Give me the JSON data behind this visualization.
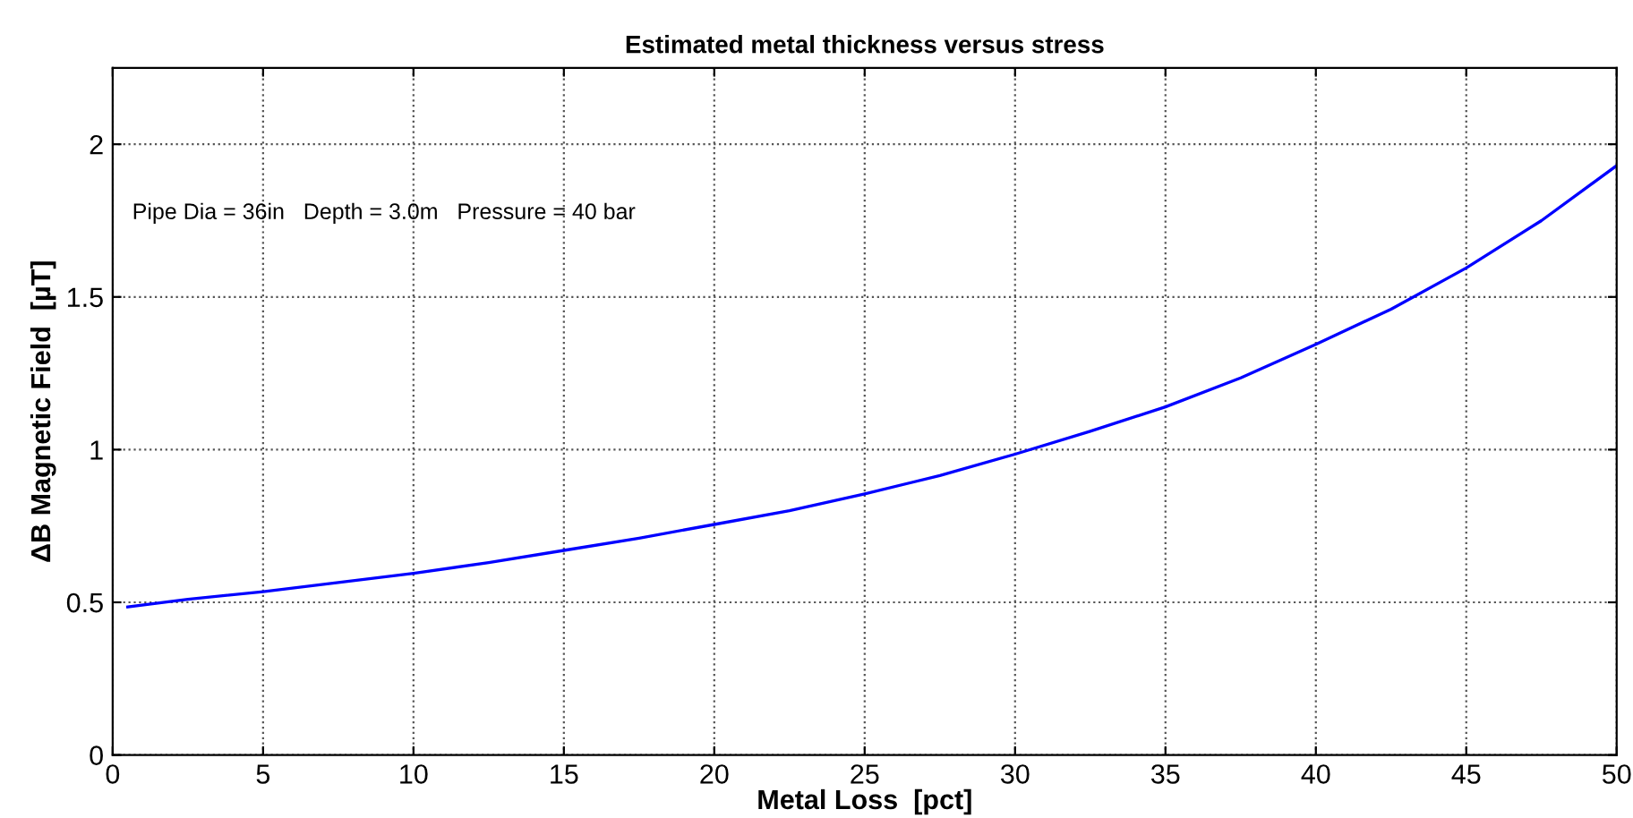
{
  "chart_data": {
    "type": "line",
    "title": "Estimated metal thickness versus stress",
    "xlabel": "Metal Loss  [pct]",
    "ylabel": "ΔB Magnetic Field  [µT]",
    "annotations": [
      "Pipe Dia = 36in   Depth = 3.0m   Pressure = 40 bar"
    ],
    "xlim": [
      0,
      50
    ],
    "xticks": [
      0,
      5,
      10,
      15,
      20,
      25,
      30,
      35,
      40,
      45,
      50
    ],
    "ylim": [
      0,
      2.25
    ],
    "yticks": [
      0,
      0.5,
      1,
      1.5,
      2
    ],
    "grid": true,
    "legend": false,
    "marker": "none",
    "line_style": "solid",
    "series": [
      {
        "color": "#0000ff",
        "x": [
          0.5,
          2.5,
          5,
          7.5,
          10,
          12.5,
          15,
          17.5,
          20,
          22.5,
          25,
          27.5,
          30,
          32.5,
          35,
          37.5,
          40,
          42.5,
          45,
          47.5,
          50
        ],
        "values": [
          0.485,
          0.51,
          0.535,
          0.565,
          0.595,
          0.63,
          0.67,
          0.71,
          0.755,
          0.8,
          0.855,
          0.915,
          0.985,
          1.06,
          1.14,
          1.235,
          1.345,
          1.46,
          1.595,
          1.75,
          1.93
        ]
      }
    ]
  }
}
